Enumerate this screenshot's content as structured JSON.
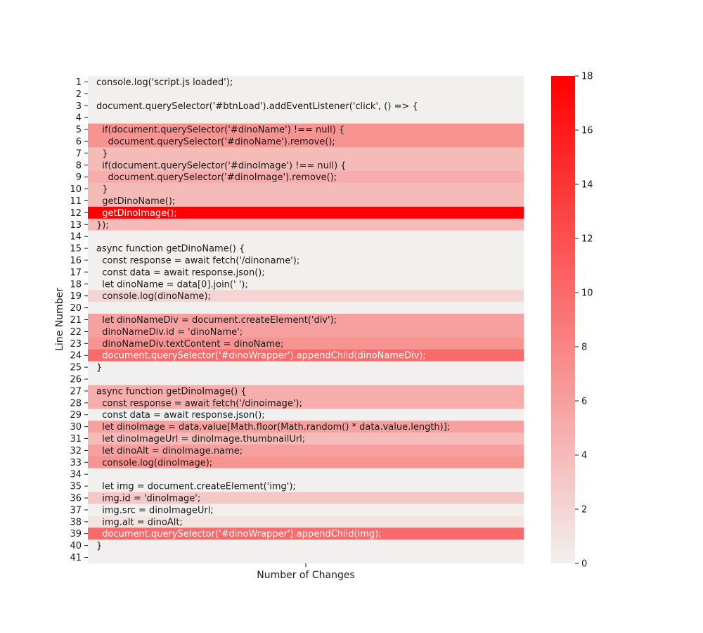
{
  "chart_data": {
    "type": "heatmap",
    "xlabel": "Number of Changes",
    "ylabel": "Line Number",
    "colorbar": {
      "min": 0,
      "max": 18,
      "ticks": [
        0,
        2,
        4,
        6,
        8,
        10,
        12,
        14,
        16,
        18
      ],
      "color_low": "#f2f0ee",
      "color_high": "#ff0000"
    },
    "rows": [
      {
        "line": 1,
        "code": "console.log('script.js loaded');",
        "changes": 0
      },
      {
        "line": 2,
        "code": "",
        "changes": 0
      },
      {
        "line": 3,
        "code": "document.querySelector('#btnLoad').addEventListener('click', () => {",
        "changes": 0
      },
      {
        "line": 4,
        "code": "",
        "changes": 0
      },
      {
        "line": 5,
        "code": "  if(document.querySelector('#dinoName') !== null) {",
        "changes": 7
      },
      {
        "line": 6,
        "code": "    document.querySelector('#dinoName').remove();",
        "changes": 7
      },
      {
        "line": 7,
        "code": "  }",
        "changes": 4
      },
      {
        "line": 8,
        "code": "  if(document.querySelector('#dinoImage') !== null) {",
        "changes": 4
      },
      {
        "line": 9,
        "code": "    document.querySelector('#dinoImage').remove();",
        "changes": 5
      },
      {
        "line": 10,
        "code": "  }",
        "changes": 4
      },
      {
        "line": 11,
        "code": "  getDinoName();",
        "changes": 4
      },
      {
        "line": 12,
        "code": "  getDinoImage();",
        "changes": 18
      },
      {
        "line": 13,
        "code": "});",
        "changes": 4
      },
      {
        "line": 14,
        "code": "",
        "changes": 0
      },
      {
        "line": 15,
        "code": "async function getDinoName() {",
        "changes": 0
      },
      {
        "line": 16,
        "code": "  const response = await fetch('/dinoname');",
        "changes": 0
      },
      {
        "line": 17,
        "code": "  const data = await response.json();",
        "changes": 0
      },
      {
        "line": 18,
        "code": "  let dinoName = data[0].join(' ');",
        "changes": 0
      },
      {
        "line": 19,
        "code": "  console.log(dinoName);",
        "changes": 2
      },
      {
        "line": 20,
        "code": "",
        "changes": 0
      },
      {
        "line": 21,
        "code": "  let dinoNameDiv = document.createElement('div');",
        "changes": 6
      },
      {
        "line": 22,
        "code": "  dinoNameDiv.id = 'dinoName';",
        "changes": 6
      },
      {
        "line": 23,
        "code": "  dinoNameDiv.textContent = dinoName;",
        "changes": 7
      },
      {
        "line": 24,
        "code": "  document.querySelector('#dinoWrapper').appendChild(dinoNameDiv);",
        "changes": 10
      },
      {
        "line": 25,
        "code": "}",
        "changes": 0
      },
      {
        "line": 26,
        "code": "",
        "changes": 0
      },
      {
        "line": 27,
        "code": "async function getDinoImage() {",
        "changes": 5
      },
      {
        "line": 28,
        "code": "  const response = await fetch('/dinoimage');",
        "changes": 5
      },
      {
        "line": 29,
        "code": "  const data = await response.json();",
        "changes": 0
      },
      {
        "line": 30,
        "code": "  let dinoImage = data.value[Math.floor(Math.random() * data.value.length)];",
        "changes": 6
      },
      {
        "line": 31,
        "code": "  let dinoImageUrl = dinoImage.thumbnailUrl;",
        "changes": 4
      },
      {
        "line": 32,
        "code": "  let dinoAlt = dinoImage.name;",
        "changes": 6
      },
      {
        "line": 33,
        "code": "  console.log(dinoImage);",
        "changes": 7
      },
      {
        "line": 34,
        "code": "",
        "changes": 0
      },
      {
        "line": 35,
        "code": "  let img = document.createElement('img');",
        "changes": 0
      },
      {
        "line": 36,
        "code": "  img.id = 'dinoImage';",
        "changes": 3
      },
      {
        "line": 37,
        "code": "  img.src = dinoImageUrl;",
        "changes": 0
      },
      {
        "line": 38,
        "code": "  img.alt = dinoAlt;",
        "changes": 1
      },
      {
        "line": 39,
        "code": "  document.querySelector('#dinoWrapper').appendChild(img);",
        "changes": 10
      },
      {
        "line": 40,
        "code": "}",
        "changes": 0
      },
      {
        "line": 41,
        "code": "",
        "changes": 0
      }
    ]
  }
}
